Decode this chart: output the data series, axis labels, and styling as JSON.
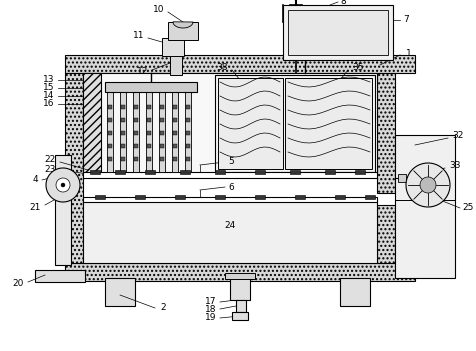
{
  "bg": "#ffffff",
  "lc": "#000000",
  "gray_light": "#f0f0f0",
  "gray_mid": "#d8d8d8",
  "gray_dark": "#a0a0a0",
  "hatch_color": "#c8c8c8"
}
